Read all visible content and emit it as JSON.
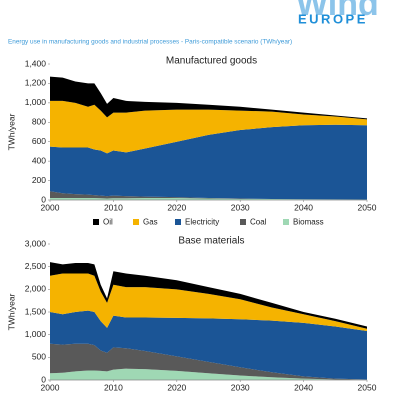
{
  "header": {
    "logo_top": "Wind",
    "logo_bottom": "EUROPE",
    "subtitle": "Energy use in manufacturing goods and industrial processes - Paris-compatible scenario (TWh/year)"
  },
  "chart_data": [
    {
      "type": "stacked-area",
      "title": "Manufactured goods",
      "y_label": "TWh/year",
      "x": [
        2000,
        2002,
        2004,
        2006,
        2007,
        2008,
        2009,
        2010,
        2012,
        2015,
        2020,
        2025,
        2030,
        2035,
        2040,
        2045,
        2050
      ],
      "series": [
        {
          "name": "Oil",
          "color": "#000000",
          "values": [
            250,
            240,
            220,
            240,
            220,
            180,
            140,
            150,
            120,
            90,
            70,
            50,
            40,
            20,
            20,
            10,
            10
          ]
        },
        {
          "name": "Gas",
          "color": "#f5b300",
          "values": [
            470,
            480,
            460,
            420,
            460,
            410,
            370,
            390,
            410,
            390,
            330,
            260,
            200,
            160,
            110,
            85,
            60
          ]
        },
        {
          "name": "Electricity",
          "color": "#1b5596",
          "values": [
            460,
            470,
            480,
            485,
            470,
            465,
            440,
            465,
            450,
            495,
            570,
            650,
            705,
            740,
            762,
            769,
            765
          ]
        },
        {
          "name": "Coal",
          "color": "#595959",
          "values": [
            70,
            50,
            40,
            35,
            30,
            27,
            24,
            27,
            22,
            15,
            10,
            5,
            3,
            0,
            0,
            0,
            0
          ]
        },
        {
          "name": "Biomass",
          "color": "#9fd8b4",
          "values": [
            20,
            20,
            20,
            20,
            20,
            18,
            16,
            18,
            18,
            20,
            20,
            15,
            12,
            10,
            8,
            6,
            5
          ]
        }
      ],
      "xlim": [
        2000,
        2050
      ],
      "xticks": [
        2000,
        2010,
        2020,
        2030,
        2040,
        2050
      ],
      "ylim": [
        0,
        1400
      ],
      "yticks": [
        0,
        {
          "value": 200,
          "label": "200"
        },
        400,
        600,
        800,
        {
          "value": 1000,
          "label": "1,000"
        },
        {
          "value": 1200,
          "label": "1,200"
        },
        {
          "value": 1400,
          "label": "1,400"
        }
      ]
    },
    {
      "type": "stacked-area",
      "title": "Base materials",
      "y_label": "TWh/year",
      "x": [
        2000,
        2002,
        2004,
        2006,
        2007,
        2008,
        2009,
        2010,
        2012,
        2015,
        2020,
        2025,
        2030,
        2035,
        2040,
        2045,
        2050
      ],
      "series": [
        {
          "color": "#000000",
          "values": [
            300,
            200,
            230,
            230,
            250,
            150,
            100,
            300,
            300,
            250,
            200,
            150,
            120,
            100,
            50,
            50,
            50
          ]
        },
        {
          "color": "#f5b300",
          "values": [
            800,
            900,
            850,
            820,
            800,
            650,
            550,
            680,
            670,
            670,
            630,
            540,
            440,
            290,
            190,
            120,
            50
          ]
        },
        {
          "color": "#1b5596",
          "values": [
            700,
            670,
            700,
            730,
            730,
            650,
            550,
            700,
            680,
            740,
            850,
            960,
            1060,
            1140,
            1180,
            1150,
            1070
          ]
        },
        {
          "color": "#595959",
          "values": [
            650,
            620,
            610,
            590,
            560,
            450,
            410,
            490,
            450,
            400,
            320,
            250,
            180,
            110,
            50,
            20,
            5
          ]
        },
        {
          "color": "#9fd8b4",
          "values": [
            150,
            160,
            190,
            210,
            210,
            200,
            190,
            230,
            250,
            240,
            200,
            150,
            100,
            60,
            30,
            10,
            5
          ]
        }
      ],
      "xlim": [
        2000,
        2050
      ],
      "xticks": [
        2000,
        2010,
        2020,
        2030,
        2040,
        2050
      ],
      "ylim": [
        0,
        3000
      ],
      "yticks": [
        0,
        500,
        {
          "value": 1000,
          "label": "1,000"
        },
        {
          "value": 1500,
          "label": "1,500"
        },
        {
          "value": 2000,
          "label": "2,000"
        },
        {
          "value": 2500,
          "label": "2,500"
        },
        {
          "value": 3000,
          "label": "3,000"
        }
      ]
    }
  ]
}
